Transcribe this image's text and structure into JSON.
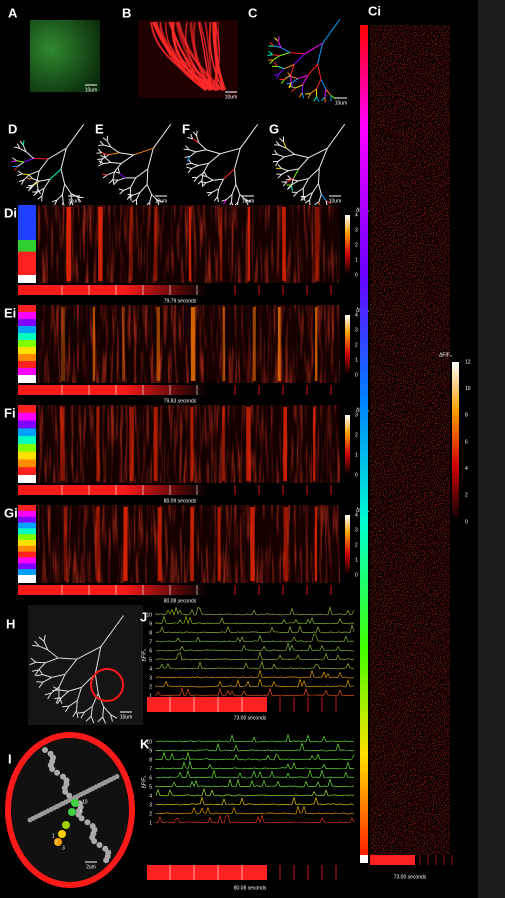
{
  "panel_labels": {
    "a": "A",
    "b": "B",
    "c": "C",
    "ci": "Ci",
    "d": "D",
    "e": "E",
    "f": "F",
    "g": "G",
    "di": "Di",
    "ei": "Ei",
    "fi": "Fi",
    "gi": "Gi",
    "h": "H",
    "i": "I",
    "j": "J",
    "k": "K"
  },
  "scale_bars": {
    "a": "10um",
    "b": "10um",
    "c": "10um",
    "d": "10um",
    "e": "10um",
    "f": "10um",
    "g": "10um",
    "h": "10um",
    "i": "2um"
  },
  "heatmaps": [
    {
      "colorbar_label": "ΔF/F₀",
      "ticks": [
        0,
        1,
        2,
        3,
        4
      ],
      "time": "79.79 seconds"
    },
    {
      "colorbar_label": "ΔF/F₀",
      "ticks": [
        0,
        1,
        2,
        3,
        4
      ],
      "time": "79.83 seconds"
    },
    {
      "colorbar_label": "ΔF/F₀",
      "ticks": [
        0,
        1,
        2,
        3
      ],
      "time": "80.09 seconds"
    },
    {
      "colorbar_label": "ΔF/F₀",
      "ticks": [
        0,
        1,
        2,
        3,
        4
      ],
      "time": "80.08 seconds"
    }
  ],
  "ci": {
    "colorbar_label": "ΔF/F₀",
    "ticks": [
      0,
      2,
      4,
      6,
      8,
      10,
      12
    ],
    "time": "73.00 seconds"
  },
  "j": {
    "ylabel": "ΔF/F₀",
    "trace_labels": [
      "10",
      "9",
      "8",
      "7",
      "6",
      "5",
      "4",
      "3",
      "2",
      "1"
    ],
    "time": "73.00 seconds"
  },
  "k": {
    "ylabel": "ΔF/F₀",
    "trace_labels": [
      "10",
      "9",
      "8",
      "7",
      "6",
      "5",
      "4",
      "3",
      "2",
      "1"
    ],
    "time": "80.08 seconds"
  },
  "i_labels": [
    "10",
    "9",
    "3",
    "2",
    "1"
  ]
}
